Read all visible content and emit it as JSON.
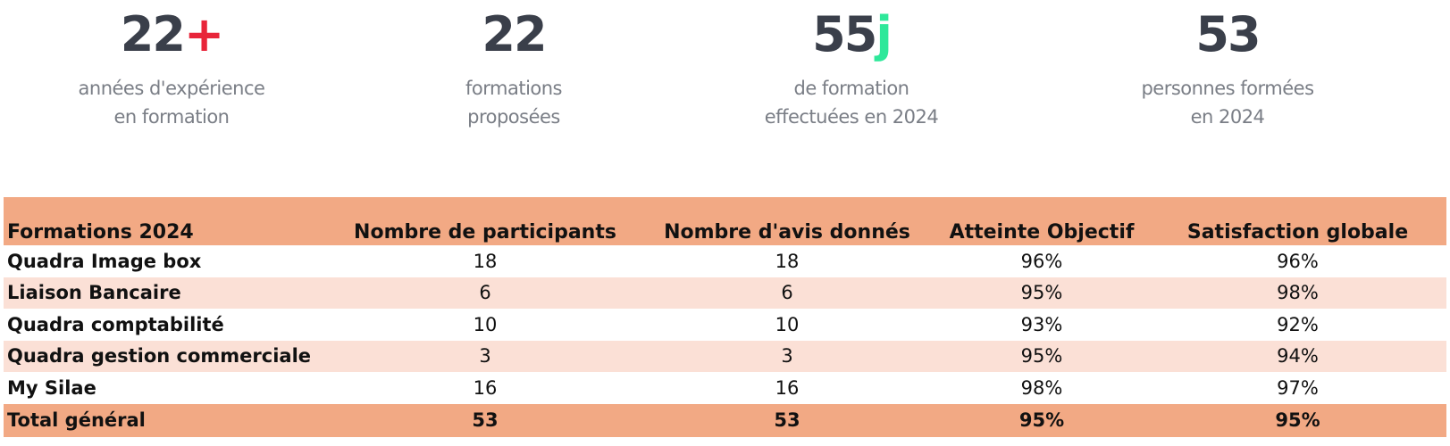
{
  "colors": {
    "accent_red": "#e8253a",
    "accent_green": "#2ee89a",
    "header_band": "#f2a984",
    "alt_row": "#fbe0d6",
    "stat_number": "#3a3f4a",
    "stat_label": "#7a7e86"
  },
  "stats": [
    {
      "number": "22",
      "suffix": "+",
      "suffix_color": "#e8253a",
      "label_line1": "années d'expérience",
      "label_line2": "en formation"
    },
    {
      "number": "22",
      "suffix": "",
      "suffix_color": "",
      "label_line1": "formations",
      "label_line2": "proposées"
    },
    {
      "number": "55",
      "suffix": "j",
      "suffix_color": "#2ee89a",
      "label_line1": "de formation",
      "label_line2": "effectuées en 2024"
    },
    {
      "number": "53",
      "suffix": "",
      "suffix_color": "",
      "label_line1": "personnes formées",
      "label_line2": "en 2024"
    }
  ],
  "table": {
    "headers": [
      "Formations 2024",
      "Nombre de participants",
      "Nombre d'avis donnés",
      "Atteinte Objectif",
      "Satisfaction globale"
    ],
    "rows": [
      [
        "Quadra Image box",
        "18",
        "18",
        "96%",
        "96%"
      ],
      [
        "Liaison Bancaire",
        "6",
        "6",
        "95%",
        "98%"
      ],
      [
        "Quadra comptabilité",
        "10",
        "10",
        "93%",
        "92%"
      ],
      [
        "Quadra gestion commerciale",
        "3",
        "3",
        "95%",
        "94%"
      ],
      [
        "My Silae",
        "16",
        "16",
        "98%",
        "97%"
      ]
    ],
    "total": [
      "Total général",
      "53",
      "53",
      "95%",
      "95%"
    ]
  }
}
